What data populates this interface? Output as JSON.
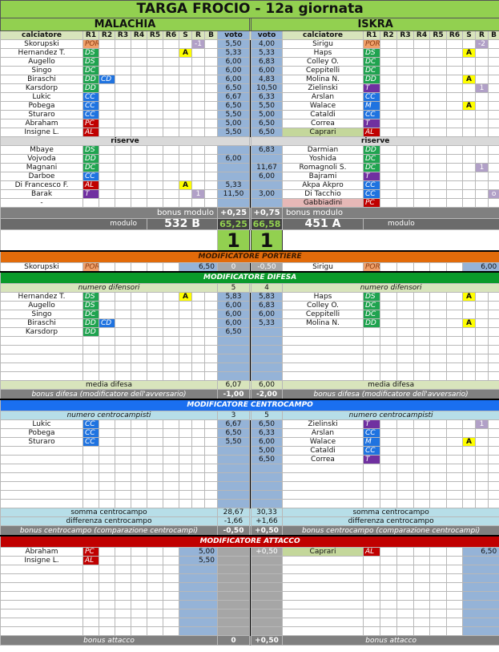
{
  "title": "TARGA FROCIO - 12a giornata",
  "columns": {
    "player": "calciatore",
    "roles": [
      "R1",
      "R2",
      "R3",
      "R4",
      "R5",
      "R6"
    ],
    "s": "S",
    "r": "R",
    "b": "B",
    "voto": "voto"
  },
  "role_colors": {
    "POR": "#f0a06a",
    "DS": "#1fa34f",
    "DD": "#1fa34f",
    "DC": "#1fa34f",
    "CD": "#1f73e0",
    "CC": "#1f73e0",
    "M": "#1f73e0",
    "T": "#7030a0",
    "PC": "#c00000",
    "AL": "#c00000"
  },
  "home": {
    "name": "MALACHIA",
    "starters": [
      {
        "name": "Skorupski",
        "roles": [
          "POR"
        ],
        "r": "-1",
        "voto": "5,50"
      },
      {
        "name": "Hernandez T.",
        "roles": [
          "DS"
        ],
        "s": "A",
        "voto": "5,33"
      },
      {
        "name": "Augello",
        "roles": [
          "DS"
        ],
        "voto": "6,00"
      },
      {
        "name": "Singo",
        "roles": [
          "DC"
        ],
        "voto": "6,00"
      },
      {
        "name": "Biraschi",
        "roles": [
          "DD",
          "CD"
        ],
        "voto": "6,00"
      },
      {
        "name": "Karsdorp",
        "roles": [
          "DD"
        ],
        "voto": "6,50"
      },
      {
        "name": "Lukic",
        "roles": [
          "CC"
        ],
        "voto": "6,67"
      },
      {
        "name": "Pobega",
        "roles": [
          "CC"
        ],
        "voto": "6,50"
      },
      {
        "name": "Sturaro",
        "roles": [
          "CC"
        ],
        "voto": "5,50"
      },
      {
        "name": "Abraham",
        "roles": [
          "PC"
        ],
        "voto": "5,00"
      },
      {
        "name": "Insigne L.",
        "roles": [
          "AL"
        ],
        "voto": "5,50"
      }
    ],
    "reserves_label": "riserve",
    "reserves": [
      {
        "name": "Mbaye",
        "roles": [
          "DS"
        ]
      },
      {
        "name": "Vojvoda",
        "roles": [
          "DD"
        ],
        "voto": "6,00"
      },
      {
        "name": "Magnani",
        "roles": [
          "DC"
        ]
      },
      {
        "name": "Darboe",
        "roles": [
          "CC"
        ]
      },
      {
        "name": "Di Francesco F.",
        "roles": [
          "AL"
        ],
        "s": "A",
        "voto": "5,33"
      },
      {
        "name": "Barak",
        "roles": [
          "T"
        ],
        "r": "1",
        "voto": "11,50"
      },
      {
        "name": "-",
        "roles": []
      }
    ],
    "bonus_modulo_label": "bonus modulo",
    "bonus_modulo": "+0,25",
    "modulo_label": "modulo",
    "modulo": "532 B",
    "total": "65,25",
    "goals": "1"
  },
  "away": {
    "name": "ISKRA",
    "starters": [
      {
        "name": "Sirigu",
        "roles": [
          "POR"
        ],
        "r": "-2",
        "voto": "4,00"
      },
      {
        "name": "Haps",
        "roles": [
          "DS"
        ],
        "s": "A",
        "voto": "5,33"
      },
      {
        "name": "Colley O.",
        "roles": [
          "DC"
        ],
        "voto": "6,83"
      },
      {
        "name": "Ceppitelli",
        "roles": [
          "DC"
        ],
        "voto": "6,00"
      },
      {
        "name": "Molina N.",
        "roles": [
          "DD"
        ],
        "s": "A",
        "voto": "4,83"
      },
      {
        "name": "Zielinski",
        "roles": [
          "T"
        ],
        "r": "1",
        "voto": "10,50"
      },
      {
        "name": "Arslan",
        "roles": [
          "CC"
        ],
        "voto": "6,33"
      },
      {
        "name": "Walace",
        "roles": [
          "M"
        ],
        "s": "A",
        "voto": "5,50"
      },
      {
        "name": "Cataldi",
        "roles": [
          "CC"
        ],
        "voto": "5,00"
      },
      {
        "name": "Correa",
        "roles": [
          "T"
        ],
        "voto": "6,50"
      },
      {
        "name": "Caprari",
        "roles": [
          "AL"
        ],
        "voto": "6,50",
        "highlight": "green"
      }
    ],
    "reserves_label": "riserve",
    "reserves": [
      {
        "name": "Darmian",
        "roles": [
          "DD"
        ],
        "voto": "6,83"
      },
      {
        "name": "Yoshida",
        "roles": [
          "DC"
        ]
      },
      {
        "name": "Romagnoli S.",
        "roles": [
          "DC"
        ],
        "r": "1",
        "voto": "11,67"
      },
      {
        "name": "Bajrami",
        "roles": [
          "T"
        ],
        "voto": "6,00"
      },
      {
        "name": "Akpa Akpro",
        "roles": [
          "CC"
        ]
      },
      {
        "name": "Di Tacchio",
        "roles": [
          "CC"
        ],
        "b": "o",
        "voto": "3,00"
      },
      {
        "name": "Gabbiadini",
        "roles": [
          "PC"
        ],
        "highlight": "red"
      }
    ],
    "bonus_modulo_label": "bonus modulo",
    "bonus_modulo": "+0,75",
    "modulo_label": "modulo",
    "modulo": "451 A",
    "total": "66,58",
    "goals": "1"
  },
  "mod_portiere": {
    "title": "MODIFICATORE PORTIERE",
    "color": "#e26b0a",
    "home": [
      {
        "name": "Skorupski",
        "roles": [
          "POR"
        ],
        "voto": "6,50",
        "mid": "0"
      }
    ],
    "away": [
      {
        "name": "Sirigu",
        "roles": [
          "POR"
        ],
        "voto": "6,00",
        "mid": "-0,50"
      }
    ]
  },
  "mod_difesa": {
    "title": "MODIFICATORE DIFESA",
    "color": "#0a9a2a",
    "count_label": "numero difensori",
    "home_count": "5",
    "away_count": "4",
    "home": [
      {
        "name": "Hernandez T.",
        "roles": [
          "DS"
        ],
        "s": "A",
        "voto": "5,83"
      },
      {
        "name": "Augello",
        "roles": [
          "DS"
        ],
        "voto": "6,00"
      },
      {
        "name": "Singo",
        "roles": [
          "DC"
        ],
        "voto": "6,00"
      },
      {
        "name": "Biraschi",
        "roles": [
          "DD",
          "CD"
        ],
        "voto": "6,00"
      },
      {
        "name": "Karsdorp",
        "roles": [
          "DD"
        ],
        "voto": "6,50"
      }
    ],
    "away": [
      {
        "name": "Haps",
        "roles": [
          "DS"
        ],
        "s": "A",
        "voto": "5,83"
      },
      {
        "name": "Colley O.",
        "roles": [
          "DC"
        ],
        "voto": "6,83"
      },
      {
        "name": "Ceppitelli",
        "roles": [
          "DC"
        ],
        "voto": "6,00"
      },
      {
        "name": "Molina N.",
        "roles": [
          "DD"
        ],
        "s": "A",
        "voto": "5,33"
      }
    ],
    "media_label": "media difesa",
    "home_media": "6,07",
    "away_media": "6,00",
    "bonus_label": "bonus difesa (modificatore dell'avversario)",
    "home_bonus": "-1,00",
    "away_bonus": "-2,00"
  },
  "mod_centrocampo": {
    "title": "MODIFICATORE CENTROCAMPO",
    "color": "#1a6ff0",
    "count_label": "numero centrocampisti",
    "home_count": "3",
    "away_count": "5",
    "home": [
      {
        "name": "Lukic",
        "roles": [
          "CC"
        ],
        "voto": "6,67"
      },
      {
        "name": "Pobega",
        "roles": [
          "CC"
        ],
        "voto": "6,50"
      },
      {
        "name": "Sturaro",
        "roles": [
          "CC"
        ],
        "voto": "5,50"
      }
    ],
    "away": [
      {
        "name": "Zielinski",
        "roles": [
          "T"
        ],
        "r": "1",
        "voto": "6,50"
      },
      {
        "name": "Arslan",
        "roles": [
          "CC"
        ],
        "voto": "6,33"
      },
      {
        "name": "Walace",
        "roles": [
          "M"
        ],
        "s": "A",
        "voto": "6,00"
      },
      {
        "name": "Cataldi",
        "roles": [
          "CC"
        ],
        "voto": "5,00"
      },
      {
        "name": "Correa",
        "roles": [
          "T"
        ],
        "voto": "6,50"
      }
    ],
    "somma_label": "somma centrocampo",
    "home_somma": "28,67",
    "away_somma": "30,33",
    "diff_label": "differenza centrocampo",
    "home_diff": "-1,66",
    "away_diff": "+1,66",
    "bonus_label": "bonus centrocampo (comparazione centrocampi)",
    "home_bonus": "-0,50",
    "away_bonus": "+0,50"
  },
  "mod_attacco": {
    "title": "MODIFICATORE ATTACCO",
    "color": "#c00000",
    "home": [
      {
        "name": "Abraham",
        "roles": [
          "PC"
        ],
        "voto": "5,00"
      },
      {
        "name": "Insigne L.",
        "roles": [
          "AL"
        ],
        "voto": "5,50"
      }
    ],
    "away": [
      {
        "name": "Caprari",
        "roles": [
          "AL"
        ],
        "voto": "6,50",
        "mid": "+0,50",
        "highlight": "green"
      }
    ],
    "bonus_label": "bonus attacco",
    "home_bonus": "0",
    "away_bonus": "+0,50"
  }
}
